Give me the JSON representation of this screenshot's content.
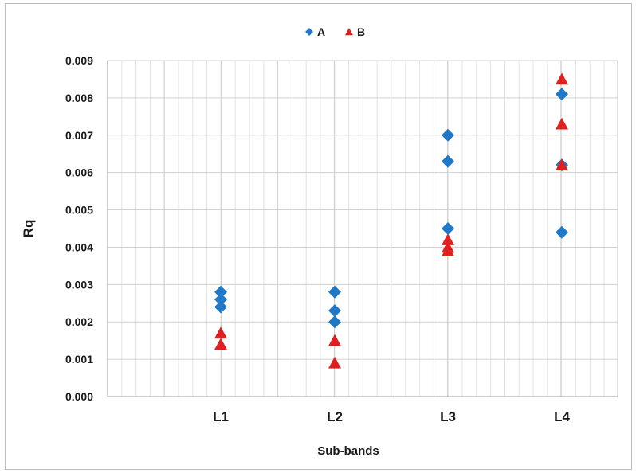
{
  "chart_data": {
    "type": "scatter",
    "title": "",
    "xlabel": "Sub-bands",
    "ylabel": "Rq",
    "categories": [
      "L1",
      "L2",
      "L3",
      "L4"
    ],
    "ylim": [
      0,
      0.009
    ],
    "yticks": [
      "0.000",
      "0.001",
      "0.002",
      "0.003",
      "0.004",
      "0.005",
      "0.006",
      "0.007",
      "0.008",
      "0.009"
    ],
    "grid": true,
    "legend": "top-center",
    "series": [
      {
        "name": "A",
        "marker": "diamond",
        "color": "#1f78c8",
        "points": [
          {
            "x": "L1",
            "y": 0.0028
          },
          {
            "x": "L1",
            "y": 0.0026
          },
          {
            "x": "L1",
            "y": 0.0024
          },
          {
            "x": "L2",
            "y": 0.0028
          },
          {
            "x": "L2",
            "y": 0.0023
          },
          {
            "x": "L2",
            "y": 0.002
          },
          {
            "x": "L3",
            "y": 0.007
          },
          {
            "x": "L3",
            "y": 0.0063
          },
          {
            "x": "L3",
            "y": 0.0045
          },
          {
            "x": "L4",
            "y": 0.0081
          },
          {
            "x": "L4",
            "y": 0.0062
          },
          {
            "x": "L4",
            "y": 0.0044
          }
        ]
      },
      {
        "name": "B",
        "marker": "triangle",
        "color": "#e02020",
        "points": [
          {
            "x": "L1",
            "y": 0.0017
          },
          {
            "x": "L1",
            "y": 0.0014
          },
          {
            "x": "L2",
            "y": 0.0015
          },
          {
            "x": "L2",
            "y": 0.0009
          },
          {
            "x": "L3",
            "y": 0.0042
          },
          {
            "x": "L3",
            "y": 0.004
          },
          {
            "x": "L3",
            "y": 0.0039
          },
          {
            "x": "L4",
            "y": 0.0085
          },
          {
            "x": "L4",
            "y": 0.0073
          },
          {
            "x": "L4",
            "y": 0.0062
          }
        ]
      }
    ]
  }
}
